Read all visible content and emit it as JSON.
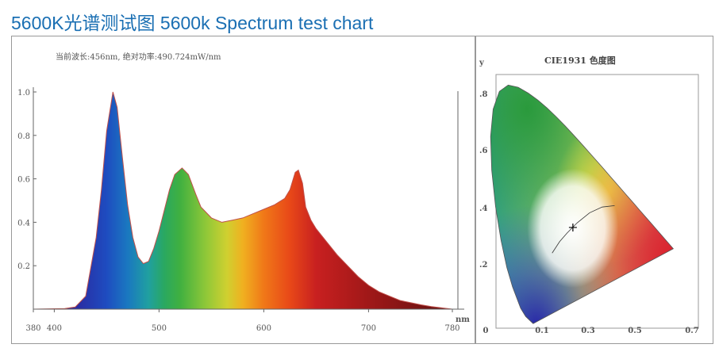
{
  "title": "5600K光谱测试图  5600k Spectrum test chart",
  "chart_data": [
    {
      "type": "area",
      "title": "当前波长:456nm, 绝对功率:490.724mW/nm",
      "xlabel": "nm",
      "ylabel": "",
      "xlim": [
        380,
        780
      ],
      "ylim": [
        0,
        1.0
      ],
      "x_ticks": [
        "380",
        "400",
        "500",
        "600",
        "700",
        "780"
      ],
      "y_ticks": [
        "1.0",
        "0.8",
        "0.6",
        "0.4",
        "0.2"
      ],
      "grid": false,
      "series": [
        {
          "name": "5600K spectrum",
          "x": [
            380,
            410,
            420,
            430,
            440,
            445,
            450,
            456,
            460,
            465,
            470,
            475,
            480,
            485,
            490,
            495,
            500,
            510,
            515,
            522,
            528,
            535,
            540,
            550,
            560,
            570,
            580,
            590,
            600,
            610,
            620,
            625,
            630,
            633,
            637,
            640,
            645,
            650,
            660,
            670,
            680,
            690,
            700,
            710,
            720,
            730,
            740,
            750,
            760,
            770,
            780
          ],
          "y": [
            0,
            0.003,
            0.01,
            0.06,
            0.33,
            0.55,
            0.82,
            1.0,
            0.93,
            0.7,
            0.48,
            0.33,
            0.24,
            0.21,
            0.22,
            0.28,
            0.36,
            0.55,
            0.62,
            0.65,
            0.62,
            0.53,
            0.47,
            0.42,
            0.4,
            0.41,
            0.42,
            0.44,
            0.46,
            0.48,
            0.51,
            0.55,
            0.63,
            0.64,
            0.58,
            0.47,
            0.41,
            0.37,
            0.31,
            0.25,
            0.2,
            0.15,
            0.11,
            0.08,
            0.06,
            0.04,
            0.03,
            0.02,
            0.012,
            0.006,
            0
          ]
        }
      ]
    },
    {
      "type": "scatter",
      "title": "CIE1931 色度图",
      "xlabel": "",
      "ylabel": "y",
      "x_ticks": [
        "0",
        "0.1",
        "0.3",
        "0.5",
        "0.7"
      ],
      "y_ticks": [
        ".8",
        ".6",
        ".4",
        ".2"
      ],
      "point": {
        "x": 0.333,
        "y": 0.339
      }
    }
  ]
}
